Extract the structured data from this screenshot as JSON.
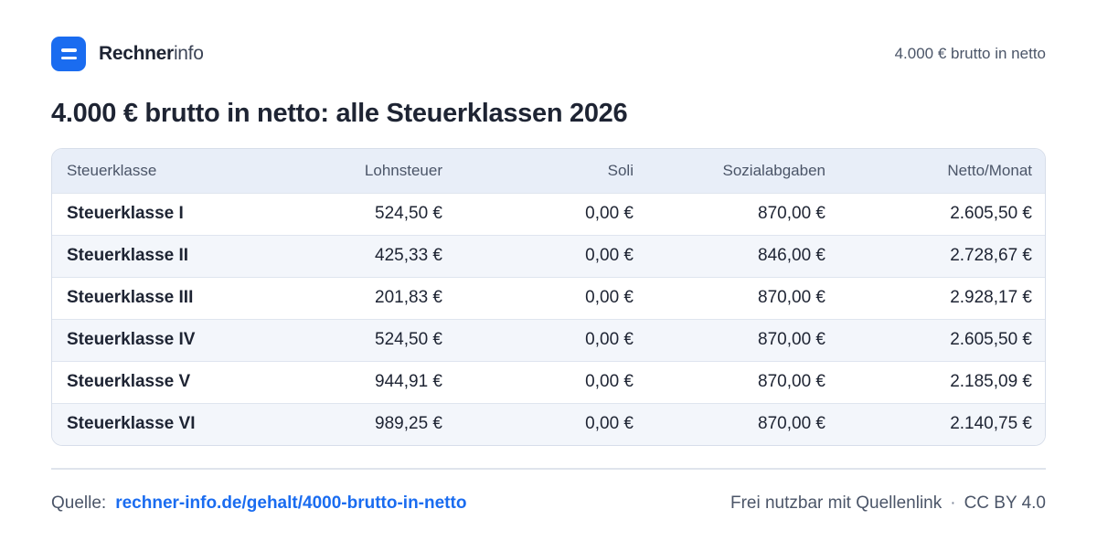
{
  "brand": {
    "name_bold": "Rechner",
    "name_light": "info"
  },
  "header": {
    "right_text": "4.000 € brutto in netto"
  },
  "title": "4.000 € brutto in netto: alle Steuerklassen 2026",
  "table": {
    "columns": [
      "Steuerklasse",
      "Lohnsteuer",
      "Soli",
      "Sozialabgaben",
      "Netto/Monat"
    ],
    "rows": [
      [
        "Steuerklasse I",
        "524,50 €",
        "0,00 €",
        "870,00 €",
        "2.605,50 €"
      ],
      [
        "Steuerklasse II",
        "425,33 €",
        "0,00 €",
        "846,00 €",
        "2.728,67 €"
      ],
      [
        "Steuerklasse III",
        "201,83 €",
        "0,00 €",
        "870,00 €",
        "2.928,17 €"
      ],
      [
        "Steuerklasse IV",
        "524,50 €",
        "0,00 €",
        "870,00 €",
        "2.605,50 €"
      ],
      [
        "Steuerklasse V",
        "944,91 €",
        "0,00 €",
        "870,00 €",
        "2.185,09 €"
      ],
      [
        "Steuerklasse VI",
        "989,25 €",
        "0,00 €",
        "870,00 €",
        "2.140,75 €"
      ]
    ]
  },
  "footer": {
    "source_label": "Quelle:",
    "source_link": "rechner-info.de/gehalt/4000-brutto-in-netto",
    "license_text": "Frei nutzbar mit Quellenlink",
    "separator": "·",
    "license": "CC BY 4.0"
  },
  "colors": {
    "accent": "#1a6cf0",
    "header_row": "#e8eef8",
    "stripe": "#f3f6fb",
    "border": "#d7deea"
  },
  "icons": {
    "logo": "menu-lines-icon"
  }
}
